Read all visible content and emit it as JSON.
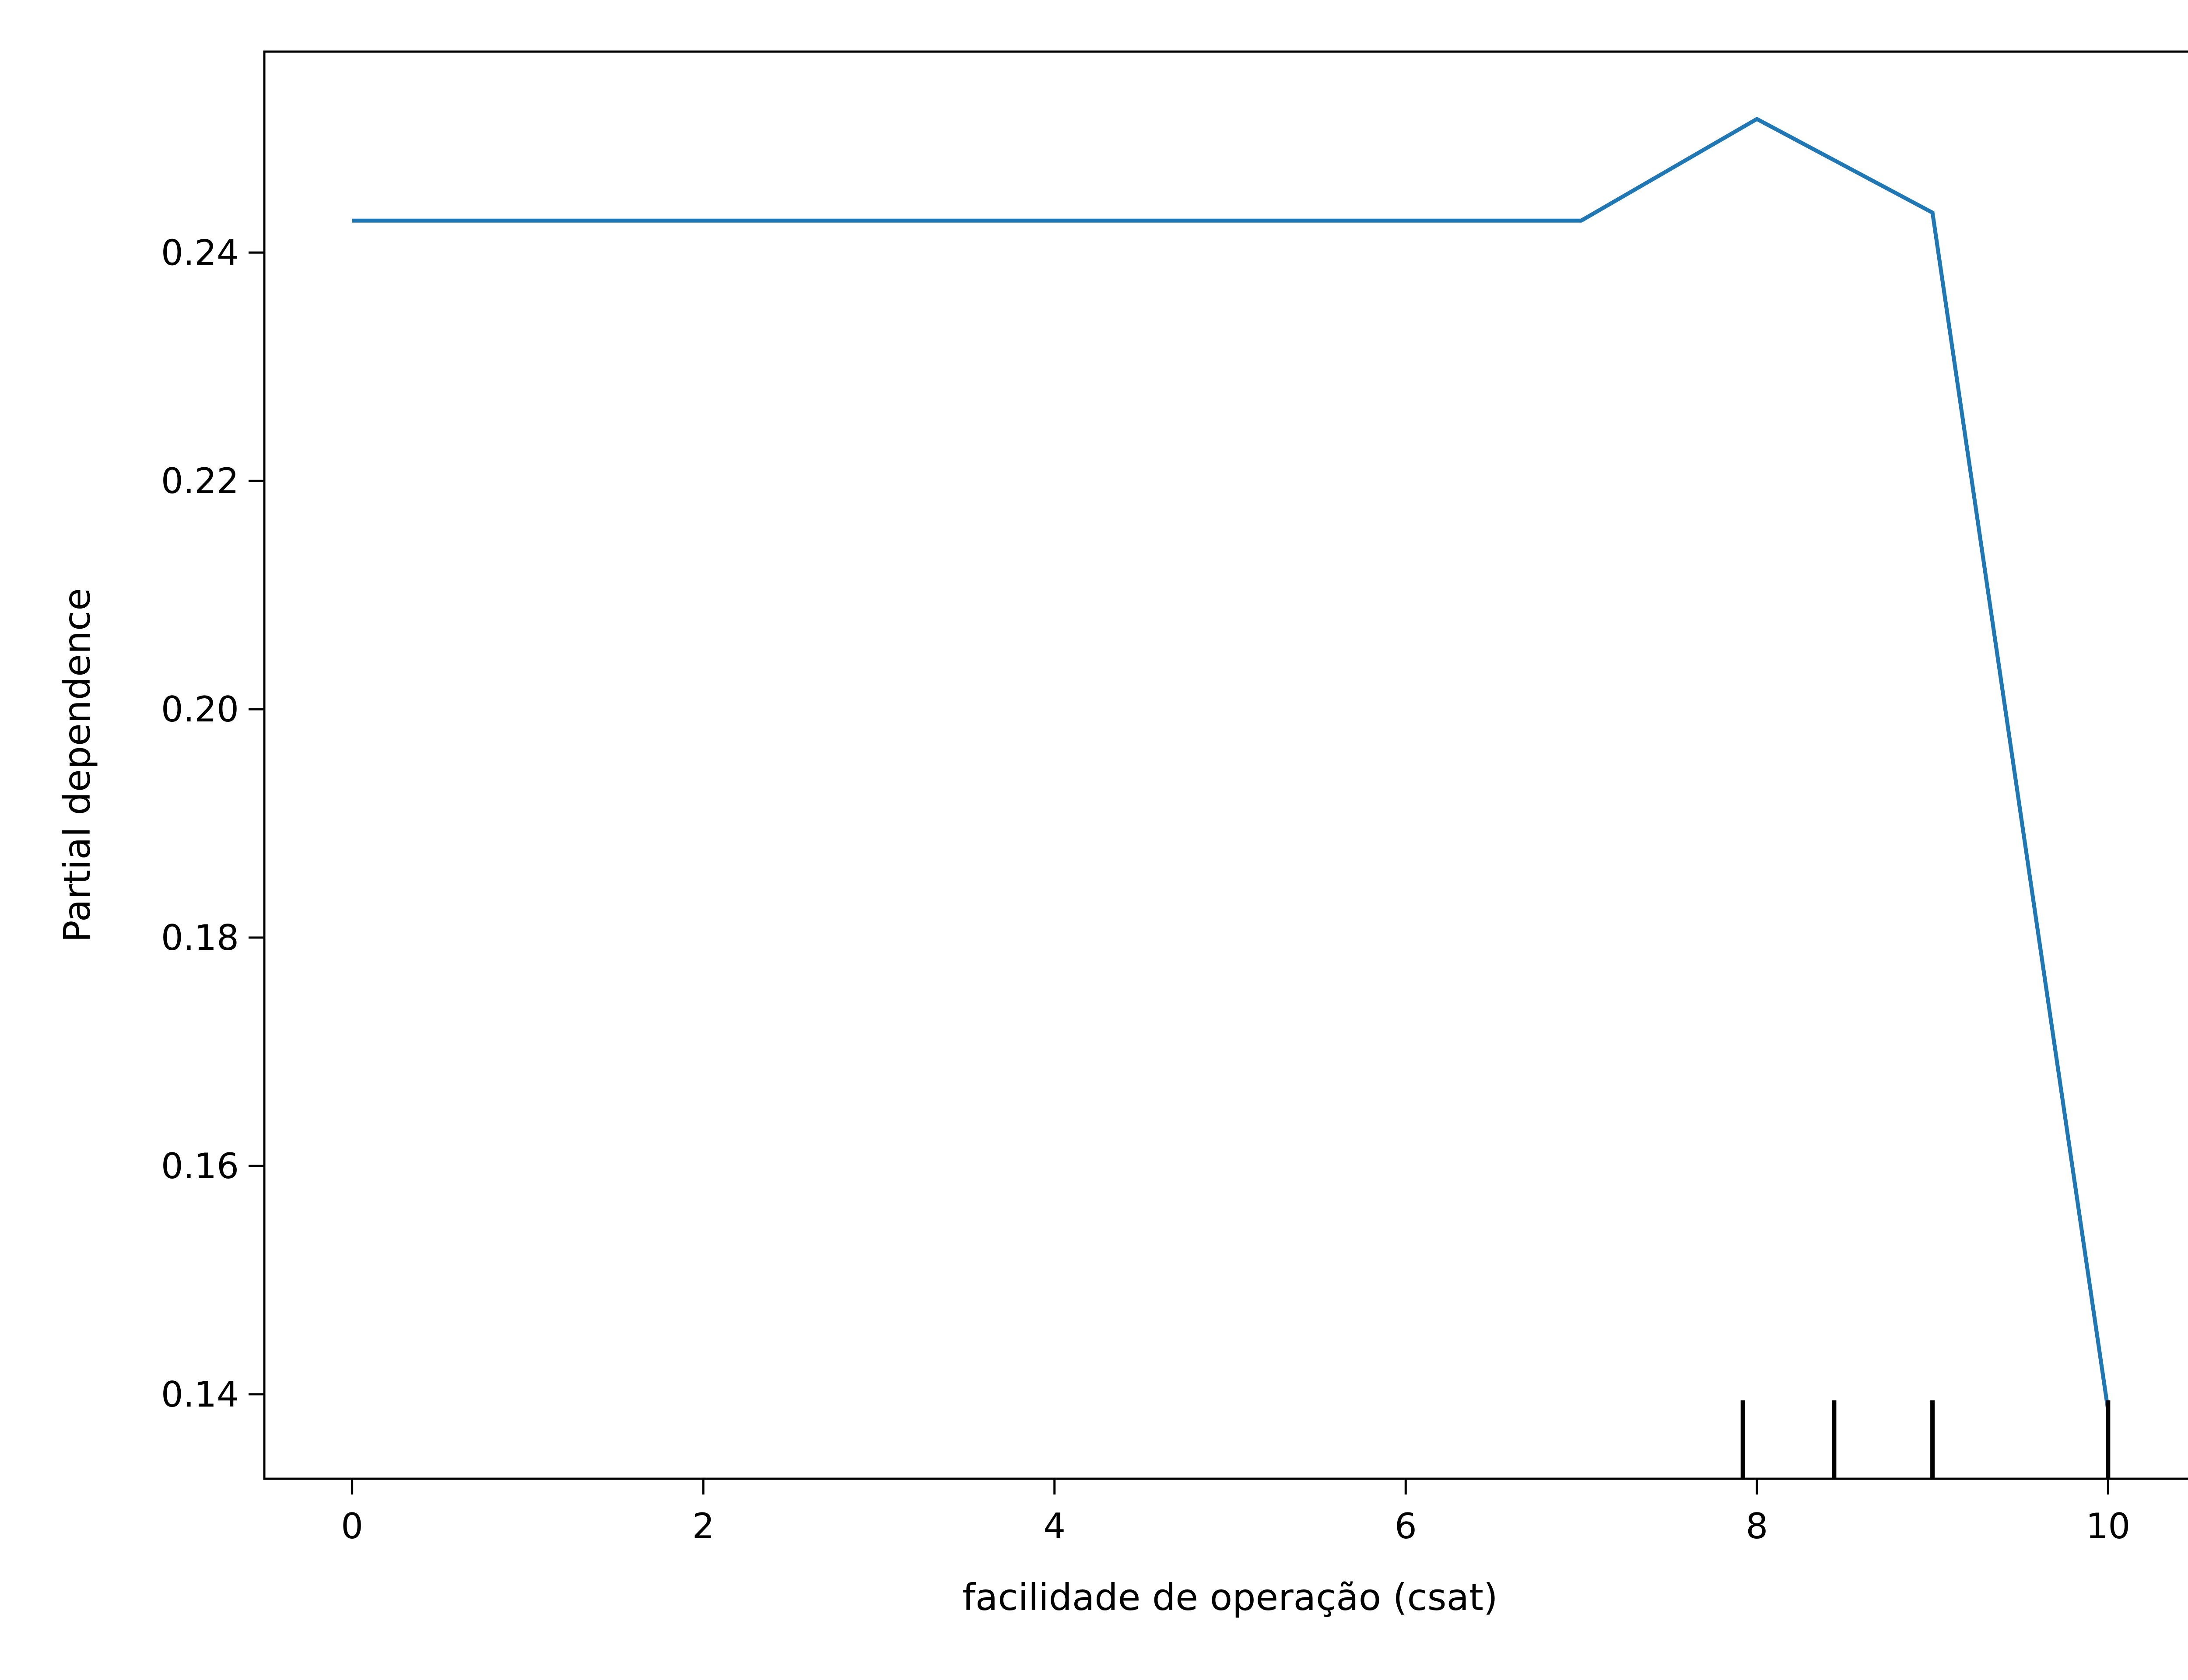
{
  "chart_data": {
    "type": "line",
    "xlabel": "facilidade de operação (csat)",
    "ylabel": "Partial dependence",
    "xlim": [
      -0.5,
      10.5
    ],
    "ylim": [
      0.1326,
      0.2576
    ],
    "x_ticks": [
      0,
      2,
      4,
      6,
      8,
      10
    ],
    "x_tick_labels": [
      "0",
      "2",
      "4",
      "6",
      "8",
      "10"
    ],
    "y_ticks": [
      0.14,
      0.16,
      0.18,
      0.2,
      0.22,
      0.24
    ],
    "y_tick_labels": [
      "0.14",
      "0.16",
      "0.18",
      "0.20",
      "0.22",
      "0.24"
    ],
    "series": [
      {
        "x": [
          0,
          1,
          2,
          3,
          4,
          5,
          6,
          7,
          8,
          9,
          10
        ],
        "y": [
          0.2428,
          0.2428,
          0.2428,
          0.2428,
          0.2428,
          0.2428,
          0.2428,
          0.2428,
          0.2517,
          0.2435,
          0.1386
        ]
      }
    ],
    "deciles": [
      7.92,
      8.44,
      9.0,
      10.0
    ],
    "grid": false,
    "colors": {
      "line": "#1f77b4",
      "axes": "#000000",
      "background": "#ffffff"
    }
  }
}
